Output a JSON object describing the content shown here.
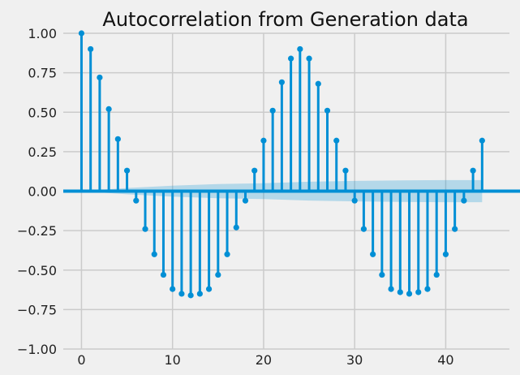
{
  "chart_data": {
    "type": "stem",
    "title": "Autocorrelation from Generation data",
    "xlabel": "",
    "ylabel": "",
    "xlim": [
      -2,
      47
    ],
    "ylim": [
      -1.0,
      1.0
    ],
    "x_ticks": [
      0,
      10,
      20,
      30,
      40
    ],
    "y_ticks": [
      -1.0,
      -0.75,
      -0.5,
      -0.25,
      0.0,
      0.25,
      0.5,
      0.75,
      1.0
    ],
    "x_tick_labels": [
      "0",
      "10",
      "20",
      "30",
      "40"
    ],
    "y_tick_labels": [
      "−1.00",
      "−0.75",
      "−0.50",
      "−0.25",
      "0.00",
      "0.25",
      "0.50",
      "0.75",
      "1.00"
    ],
    "grid": true,
    "lags": [
      0,
      1,
      2,
      3,
      4,
      5,
      6,
      7,
      8,
      9,
      10,
      11,
      12,
      13,
      14,
      15,
      16,
      17,
      18,
      19,
      20,
      21,
      22,
      23,
      24,
      25,
      26,
      27,
      28,
      29,
      30,
      31,
      32,
      33,
      34,
      35,
      36,
      37,
      38,
      39,
      40,
      41,
      42,
      43,
      44
    ],
    "values": [
      1.0,
      0.9,
      0.72,
      0.52,
      0.33,
      0.13,
      -0.06,
      -0.24,
      -0.4,
      -0.53,
      -0.62,
      -0.65,
      -0.66,
      -0.65,
      -0.62,
      -0.53,
      -0.4,
      -0.23,
      -0.06,
      0.13,
      0.32,
      0.51,
      0.69,
      0.84,
      0.9,
      0.84,
      0.68,
      0.51,
      0.32,
      0.13,
      -0.06,
      -0.24,
      -0.4,
      -0.53,
      -0.62,
      -0.64,
      -0.65,
      -0.64,
      -0.62,
      -0.53,
      -0.4,
      -0.24,
      -0.06,
      0.13,
      0.32
    ],
    "confidence_band": {
      "x": [
        0,
        5,
        10,
        15,
        20,
        25,
        30,
        35,
        40,
        44
      ],
      "upper": [
        0.0,
        0.02,
        0.035,
        0.045,
        0.05,
        0.06,
        0.065,
        0.068,
        0.07,
        0.07
      ],
      "lower": [
        0.0,
        -0.02,
        -0.035,
        -0.045,
        -0.05,
        -0.06,
        -0.065,
        -0.068,
        -0.07,
        -0.07
      ]
    },
    "colors": {
      "stem": "#008fd5",
      "band": "#008fd5",
      "grid": "#cbcbcb",
      "background": "#f0f0f0"
    }
  }
}
